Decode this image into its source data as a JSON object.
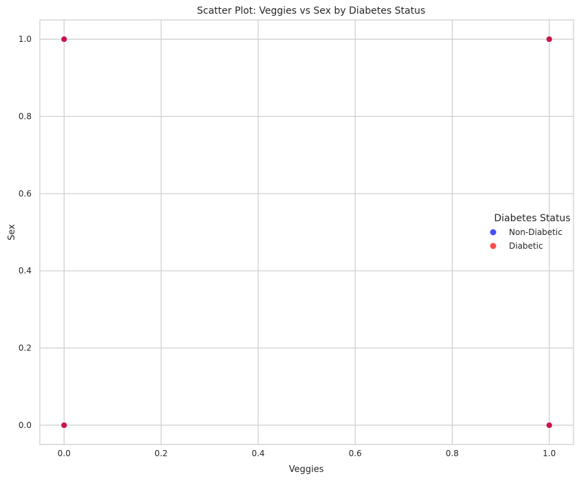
{
  "chart_data": {
    "type": "scatter",
    "title": "Scatter Plot: Veggies vs Sex by Diabetes Status",
    "xlabel": "Veggies",
    "ylabel": "Sex",
    "xlim": [
      -0.05,
      1.05
    ],
    "ylim": [
      -0.05,
      1.05
    ],
    "x_ticks": [
      "0.0",
      "0.2",
      "0.4",
      "0.6",
      "0.8",
      "1.0"
    ],
    "y_ticks": [
      "0.0",
      "0.2",
      "0.4",
      "0.6",
      "0.8",
      "1.0"
    ],
    "grid": true,
    "legend": {
      "title": "Diabetes Status",
      "placement": "center-right"
    },
    "series": [
      {
        "name": "Non-Diabetic",
        "color": "#0000ff",
        "points": [
          {
            "x": 0,
            "y": 1
          },
          {
            "x": 1,
            "y": 1
          },
          {
            "x": 1,
            "y": 0
          },
          {
            "x": 0,
            "y": 0
          }
        ]
      },
      {
        "name": "Diabetic",
        "color": "#ff0000",
        "points": [
          {
            "x": 0,
            "y": 1
          },
          {
            "x": 1,
            "y": 1
          },
          {
            "x": 1,
            "y": 0
          },
          {
            "x": 0,
            "y": 0
          }
        ]
      }
    ]
  }
}
